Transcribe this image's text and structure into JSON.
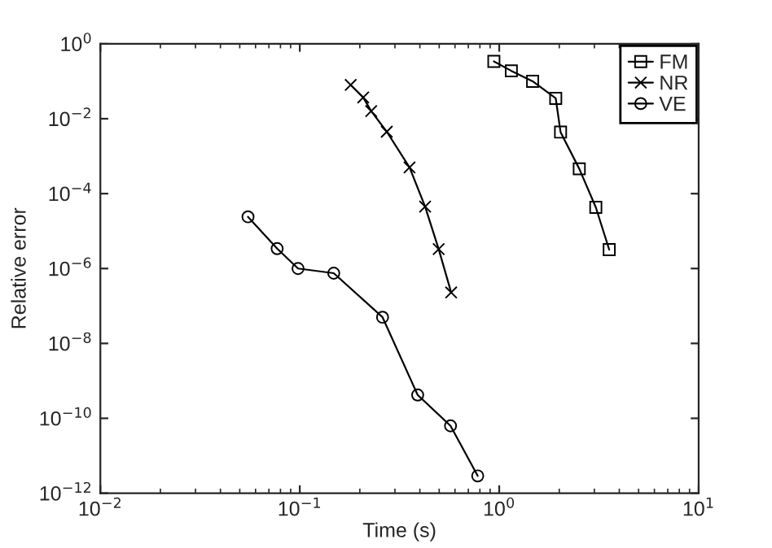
{
  "chart_data": {
    "type": "line",
    "xlabel": "Time (s)",
    "ylabel": "Relative error",
    "log": "xy",
    "legend": "top right",
    "grid": false,
    "xlim": [
      0.01,
      10
    ],
    "ylim": [
      1e-12,
      1
    ],
    "xticks": [
      {
        "value": 0.01,
        "label": "10$^{−2}$"
      },
      {
        "value": 0.1,
        "label": "10$^{−1}$"
      },
      {
        "value": 1,
        "label": "10$^{0}$"
      },
      {
        "value": 10,
        "label": "10$^{1}$"
      }
    ],
    "yticks": [
      {
        "value": 1e-12,
        "label": "10$^{−12}$"
      },
      {
        "value": 1e-10,
        "label": "10$^{−10}$"
      },
      {
        "value": 1e-08,
        "label": "10$^{−8}$"
      },
      {
        "value": 1e-06,
        "label": "10$^{−6}$"
      },
      {
        "value": 0.0001,
        "label": "10$^{−4}$"
      },
      {
        "value": 0.01,
        "label": "10$^{−2}$"
      },
      {
        "value": 1,
        "label": "10$^{0}$"
      }
    ],
    "series": [
      {
        "name": "FM",
        "color": "#000000",
        "marker": "square",
        "x": [
          0.94,
          1.15,
          1.47,
          1.92,
          2.03,
          2.52,
          3.05,
          3.56
        ],
        "values": [
          0.34,
          0.19,
          0.1,
          0.035,
          0.0044,
          0.00046,
          4.3e-05,
          3.2e-06
        ]
      },
      {
        "name": "NR",
        "color": "#000000",
        "marker": "cross",
        "x": [
          0.18,
          0.208,
          0.228,
          0.273,
          0.355,
          0.425,
          0.497,
          0.574
        ],
        "values": [
          0.08,
          0.037,
          0.016,
          0.0045,
          0.0005,
          4.5e-05,
          3.3e-06,
          2.3e-07
        ]
      },
      {
        "name": "VE",
        "color": "#000000",
        "marker": "circle",
        "x": [
          0.055,
          0.077,
          0.098,
          0.148,
          0.26,
          0.39,
          0.57,
          0.78
        ],
        "values": [
          2.4e-05,
          3.4e-06,
          1e-06,
          7.5e-07,
          5e-08,
          4.2e-10,
          6.3e-11,
          2.9e-12
        ]
      }
    ]
  }
}
